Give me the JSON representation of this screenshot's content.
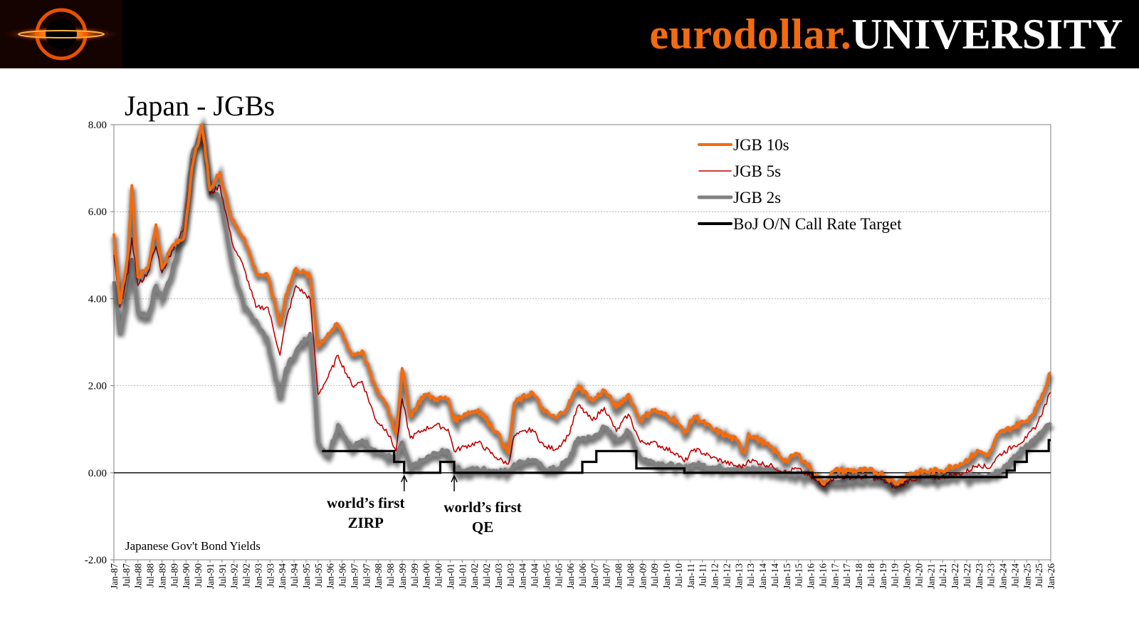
{
  "header": {
    "brand_part1": "eurodollar.",
    "brand_part2": "UNIVERSITY",
    "logo_icon": "black-hole-logo-icon",
    "background": "#000000",
    "accent": "#f26b10"
  },
  "chart_data": {
    "type": "line",
    "title": "Japan - JGBs",
    "note": "Japanese Gov't Bond Yields",
    "xlabel": "",
    "ylabel": "",
    "ylim": [
      -2,
      8
    ],
    "yticks": [
      -2,
      0,
      2,
      4,
      6,
      8
    ],
    "ytick_labels": [
      "-2.00",
      "0.00",
      "2.00",
      "4.00",
      "6.00",
      "8.00"
    ],
    "xlim": [
      "1987-01",
      "2026-01"
    ],
    "xtick_labels": [
      "Jan-87",
      "Jul-87",
      "Jan-88",
      "Jul-88",
      "Jan-89",
      "Jul-89",
      "Jan-90",
      "Jul-90",
      "Jan-91",
      "Jul-91",
      "Jan-92",
      "Jul-92",
      "Jan-93",
      "Jul-93",
      "Jan-94",
      "Jul-94",
      "Jan-95",
      "Jul-95",
      "Jan-96",
      "Jul-96",
      "Jan-97",
      "Jul-97",
      "Jan-98",
      "Jul-98",
      "Jan-99",
      "Jul-99",
      "Jan-00",
      "Jul-00",
      "Jan-01",
      "Jul-01",
      "Jan-02",
      "Jul-02",
      "Jan-03",
      "Jul-03",
      "Jan-04",
      "Jul-04",
      "Jan-05",
      "Jul-05",
      "Jan-06",
      "Jul-06",
      "Jan-07",
      "Jul-07",
      "Jan-08",
      "Jul-08",
      "Jan-09",
      "Jul-09",
      "Jan-10",
      "Jul-10",
      "Jan-11",
      "Jul-11",
      "Jan-12",
      "Jul-12",
      "Jan-13",
      "Jul-13",
      "Jan-14",
      "Jul-14",
      "Jan-15",
      "Jul-15",
      "Jan-16",
      "Jul-16",
      "Jan-17",
      "Jul-17",
      "Jan-18",
      "Jul-18",
      "Jan-19",
      "Jul-19",
      "Jan-20",
      "Jul-20",
      "Jan-21",
      "Jul-21",
      "Jan-22",
      "Jul-22",
      "Jan-23",
      "Jul-23",
      "Jan-24",
      "Jul-24",
      "Jan-25",
      "Jul-25",
      "Jan-26"
    ],
    "grid": true,
    "legend_position": "top-right",
    "series": [
      {
        "name": "JGB 10s",
        "color": "#f26b10",
        "points": [
          [
            "1987-01",
            5.5
          ],
          [
            "1987-04",
            3.9
          ],
          [
            "1987-08",
            5.0
          ],
          [
            "1987-10",
            6.6
          ],
          [
            "1988-01",
            4.5
          ],
          [
            "1988-06",
            4.7
          ],
          [
            "1988-10",
            5.7
          ],
          [
            "1989-01",
            4.7
          ],
          [
            "1989-06",
            5.2
          ],
          [
            "1989-12",
            5.4
          ],
          [
            "1990-04",
            7.0
          ],
          [
            "1990-09",
            8.0
          ],
          [
            "1991-01",
            6.5
          ],
          [
            "1991-06",
            6.9
          ],
          [
            "1991-12",
            5.8
          ],
          [
            "1992-06",
            5.4
          ],
          [
            "1992-12",
            4.6
          ],
          [
            "1993-06",
            4.5
          ],
          [
            "1993-12",
            3.4
          ],
          [
            "1994-03",
            4.1
          ],
          [
            "1994-08",
            4.7
          ],
          [
            "1995-03",
            4.5
          ],
          [
            "1995-07",
            2.9
          ],
          [
            "1995-12",
            3.2
          ],
          [
            "1996-05",
            3.4
          ],
          [
            "1996-12",
            2.7
          ],
          [
            "1997-05",
            2.8
          ],
          [
            "1997-12",
            1.9
          ],
          [
            "1998-05",
            1.6
          ],
          [
            "1998-10",
            0.9
          ],
          [
            "1999-01",
            2.4
          ],
          [
            "1999-05",
            1.3
          ],
          [
            "1999-12",
            1.8
          ],
          [
            "2000-06",
            1.7
          ],
          [
            "2000-12",
            1.7
          ],
          [
            "2001-03",
            1.2
          ],
          [
            "2001-08",
            1.35
          ],
          [
            "2002-03",
            1.45
          ],
          [
            "2002-12",
            0.95
          ],
          [
            "2003-06",
            0.45
          ],
          [
            "2003-09",
            1.6
          ],
          [
            "2004-06",
            1.85
          ],
          [
            "2004-12",
            1.4
          ],
          [
            "2005-06",
            1.25
          ],
          [
            "2005-12",
            1.55
          ],
          [
            "2006-05",
            2.0
          ],
          [
            "2006-12",
            1.65
          ],
          [
            "2007-06",
            1.9
          ],
          [
            "2007-12",
            1.5
          ],
          [
            "2008-06",
            1.8
          ],
          [
            "2008-12",
            1.2
          ],
          [
            "2009-06",
            1.45
          ],
          [
            "2010-06",
            1.2
          ],
          [
            "2010-10",
            0.9
          ],
          [
            "2011-03",
            1.3
          ],
          [
            "2011-12",
            1.0
          ],
          [
            "2012-12",
            0.75
          ],
          [
            "2013-04",
            0.45
          ],
          [
            "2013-06",
            0.9
          ],
          [
            "2014-06",
            0.55
          ],
          [
            "2015-01",
            0.25
          ],
          [
            "2015-06",
            0.45
          ],
          [
            "2016-01",
            0.1
          ],
          [
            "2016-07",
            -0.25
          ],
          [
            "2017-01",
            0.05
          ],
          [
            "2018-06",
            0.05
          ],
          [
            "2018-12",
            0.0
          ],
          [
            "2019-08",
            -0.25
          ],
          [
            "2020-03",
            0.0
          ],
          [
            "2021-06",
            0.05
          ],
          [
            "2022-06",
            0.25
          ],
          [
            "2023-01",
            0.5
          ],
          [
            "2023-06",
            0.4
          ],
          [
            "2023-11",
            0.9
          ],
          [
            "2024-06",
            1.05
          ],
          [
            "2025-01",
            1.2
          ],
          [
            "2025-06",
            1.5
          ],
          [
            "2026-01",
            2.3
          ]
        ]
      },
      {
        "name": "JGB 5s",
        "color": "#c00000",
        "points": [
          [
            "1987-01",
            5.0
          ],
          [
            "1987-04",
            3.8
          ],
          [
            "1987-08",
            4.6
          ],
          [
            "1987-10",
            5.4
          ],
          [
            "1988-01",
            4.3
          ],
          [
            "1988-06",
            4.6
          ],
          [
            "1988-10",
            5.2
          ],
          [
            "1989-01",
            4.6
          ],
          [
            "1989-06",
            5.1
          ],
          [
            "1989-12",
            5.6
          ],
          [
            "1990-04",
            7.2
          ],
          [
            "1990-09",
            7.8
          ],
          [
            "1991-01",
            6.4
          ],
          [
            "1991-06",
            6.6
          ],
          [
            "1991-12",
            5.3
          ],
          [
            "1992-06",
            4.7
          ],
          [
            "1992-12",
            3.8
          ],
          [
            "1993-06",
            3.8
          ],
          [
            "1993-12",
            2.7
          ],
          [
            "1994-03",
            3.5
          ],
          [
            "1994-08",
            4.3
          ],
          [
            "1995-03",
            4.0
          ],
          [
            "1995-07",
            1.8
          ],
          [
            "1995-12",
            2.2
          ],
          [
            "1996-05",
            2.7
          ],
          [
            "1996-12",
            2.0
          ],
          [
            "1997-05",
            2.1
          ],
          [
            "1997-12",
            1.2
          ],
          [
            "1998-05",
            1.0
          ],
          [
            "1998-10",
            0.5
          ],
          [
            "1999-01",
            1.7
          ],
          [
            "1999-05",
            0.8
          ],
          [
            "1999-12",
            1.0
          ],
          [
            "2000-06",
            1.1
          ],
          [
            "2000-12",
            1.0
          ],
          [
            "2001-03",
            0.5
          ],
          [
            "2001-08",
            0.6
          ],
          [
            "2002-03",
            0.7
          ],
          [
            "2002-12",
            0.35
          ],
          [
            "2003-06",
            0.2
          ],
          [
            "2003-09",
            0.85
          ],
          [
            "2004-06",
            1.0
          ],
          [
            "2004-12",
            0.6
          ],
          [
            "2005-06",
            0.55
          ],
          [
            "2005-12",
            0.85
          ],
          [
            "2006-05",
            1.55
          ],
          [
            "2006-12",
            1.2
          ],
          [
            "2007-06",
            1.5
          ],
          [
            "2007-12",
            0.95
          ],
          [
            "2008-06",
            1.35
          ],
          [
            "2008-12",
            0.7
          ],
          [
            "2009-06",
            0.7
          ],
          [
            "2010-06",
            0.45
          ],
          [
            "2010-10",
            0.25
          ],
          [
            "2011-03",
            0.55
          ],
          [
            "2011-12",
            0.35
          ],
          [
            "2012-12",
            0.15
          ],
          [
            "2013-04",
            0.15
          ],
          [
            "2013-06",
            0.3
          ],
          [
            "2014-06",
            0.15
          ],
          [
            "2015-01",
            0.0
          ],
          [
            "2015-06",
            0.1
          ],
          [
            "2016-01",
            -0.1
          ],
          [
            "2016-07",
            -0.3
          ],
          [
            "2017-01",
            -0.1
          ],
          [
            "2018-06",
            -0.1
          ],
          [
            "2018-12",
            -0.15
          ],
          [
            "2019-08",
            -0.35
          ],
          [
            "2020-03",
            -0.15
          ],
          [
            "2021-06",
            -0.1
          ],
          [
            "2022-06",
            0.0
          ],
          [
            "2023-01",
            0.2
          ],
          [
            "2023-06",
            0.1
          ],
          [
            "2023-11",
            0.4
          ],
          [
            "2024-06",
            0.6
          ],
          [
            "2025-01",
            0.8
          ],
          [
            "2025-06",
            1.1
          ],
          [
            "2026-01",
            1.85
          ]
        ]
      },
      {
        "name": "JGB 2s",
        "color": "#808080",
        "points": [
          [
            "1987-01",
            4.4
          ],
          [
            "1987-04",
            3.2
          ],
          [
            "1987-08",
            4.2
          ],
          [
            "1987-10",
            4.9
          ],
          [
            "1988-01",
            3.7
          ],
          [
            "1988-06",
            3.6
          ],
          [
            "1988-10",
            4.3
          ],
          [
            "1989-01",
            4.0
          ],
          [
            "1989-06",
            4.6
          ],
          [
            "1989-12",
            5.7
          ],
          [
            "1990-04",
            7.3
          ],
          [
            "1990-09",
            7.9
          ],
          [
            "1991-01",
            6.5
          ],
          [
            "1991-06",
            6.3
          ],
          [
            "1991-12",
            4.8
          ],
          [
            "1992-06",
            3.8
          ],
          [
            "1992-12",
            3.5
          ],
          [
            "1993-06",
            3.0
          ],
          [
            "1993-12",
            1.7
          ],
          [
            "1994-03",
            2.4
          ],
          [
            "1994-08",
            2.8
          ],
          [
            "1995-03",
            3.2
          ],
          [
            "1995-07",
            0.7
          ],
          [
            "1995-12",
            0.4
          ],
          [
            "1996-05",
            1.1
          ],
          [
            "1996-12",
            0.55
          ],
          [
            "1997-05",
            0.75
          ],
          [
            "1997-12",
            0.5
          ],
          [
            "1998-05",
            0.4
          ],
          [
            "1998-10",
            0.3
          ],
          [
            "1999-01",
            0.7
          ],
          [
            "1999-05",
            0.1
          ],
          [
            "1999-12",
            0.3
          ],
          [
            "2000-06",
            0.45
          ],
          [
            "2000-12",
            0.5
          ],
          [
            "2001-03",
            0.1
          ],
          [
            "2001-08",
            0.05
          ],
          [
            "2002-03",
            0.08
          ],
          [
            "2002-12",
            0.05
          ],
          [
            "2003-06",
            0.03
          ],
          [
            "2003-09",
            0.2
          ],
          [
            "2004-06",
            0.3
          ],
          [
            "2004-12",
            0.1
          ],
          [
            "2005-06",
            0.08
          ],
          [
            "2005-12",
            0.3
          ],
          [
            "2006-05",
            0.8
          ],
          [
            "2006-12",
            0.8
          ],
          [
            "2007-06",
            1.05
          ],
          [
            "2007-12",
            0.75
          ],
          [
            "2008-06",
            0.95
          ],
          [
            "2008-12",
            0.35
          ],
          [
            "2009-06",
            0.25
          ],
          [
            "2010-06",
            0.15
          ],
          [
            "2010-10",
            0.1
          ],
          [
            "2011-03",
            0.2
          ],
          [
            "2011-12",
            0.13
          ],
          [
            "2012-12",
            0.1
          ],
          [
            "2013-04",
            0.05
          ],
          [
            "2013-06",
            0.1
          ],
          [
            "2014-06",
            0.07
          ],
          [
            "2015-01",
            0.0
          ],
          [
            "2015-06",
            -0.02
          ],
          [
            "2016-01",
            -0.05
          ],
          [
            "2016-07",
            -0.3
          ],
          [
            "2017-01",
            -0.2
          ],
          [
            "2018-06",
            -0.15
          ],
          [
            "2018-12",
            -0.15
          ],
          [
            "2019-08",
            -0.35
          ],
          [
            "2020-03",
            -0.15
          ],
          [
            "2021-06",
            -0.13
          ],
          [
            "2022-06",
            -0.07
          ],
          [
            "2023-01",
            -0.05
          ],
          [
            "2023-06",
            -0.05
          ],
          [
            "2023-11",
            0.05
          ],
          [
            "2024-06",
            0.3
          ],
          [
            "2025-01",
            0.65
          ],
          [
            "2025-06",
            0.8
          ],
          [
            "2026-01",
            1.15
          ]
        ]
      },
      {
        "name": "BoJ O/N Call Rate Target",
        "color": "#000000",
        "step": true,
        "start": "1995-09",
        "points": [
          [
            "1995-09",
            0.5
          ],
          [
            "1998-09",
            0.25
          ],
          [
            "1999-02",
            0.0
          ],
          [
            "2000-08",
            0.25
          ],
          [
            "2001-03",
            0.0
          ],
          [
            "2006-07",
            0.25
          ],
          [
            "2007-02",
            0.5
          ],
          [
            "2008-10",
            0.1
          ],
          [
            "2010-10",
            0.0
          ],
          [
            "2016-02",
            -0.1
          ],
          [
            "2024-03",
            0.05
          ],
          [
            "2024-07",
            0.25
          ],
          [
            "2025-01",
            0.5
          ],
          [
            "2025-12",
            0.75
          ],
          [
            "2026-01",
            0.75
          ]
        ]
      }
    ],
    "annotations": [
      {
        "lines": [
          "world’s first",
          "ZIRP"
        ],
        "at": "1999-02"
      },
      {
        "lines": [
          "world’s first",
          "QE"
        ],
        "at": "2001-03"
      }
    ]
  }
}
